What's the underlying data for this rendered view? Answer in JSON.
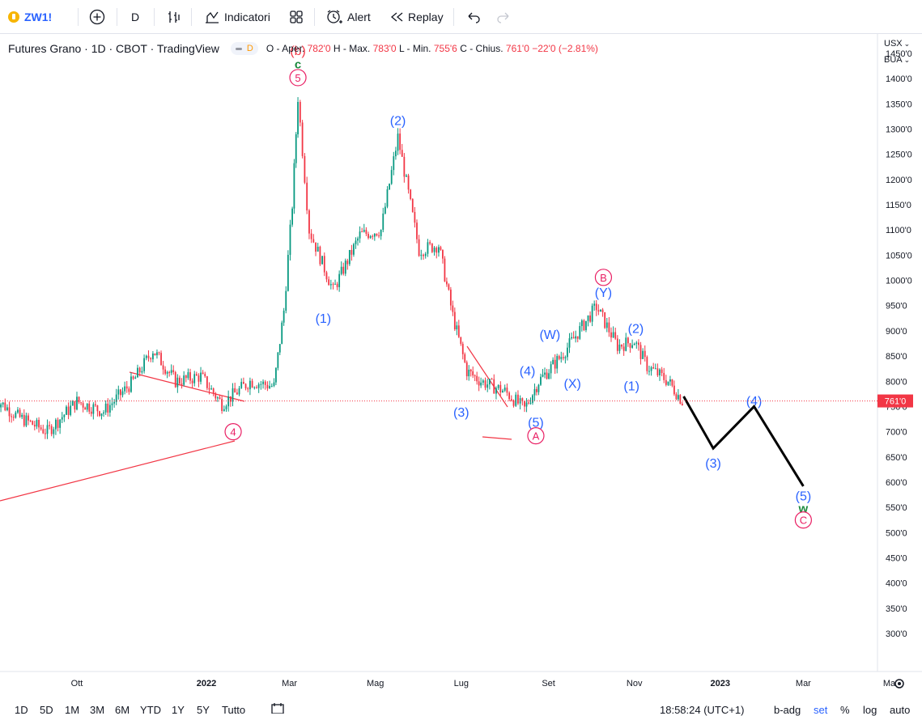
{
  "toolbar": {
    "symbol": "ZW1!",
    "interval": "D",
    "indicators_label": "Indicatori",
    "alert_label": "Alert",
    "replay_label": "Replay"
  },
  "legend": {
    "title": "Futures Grano · 1D · CBOT · TradingView",
    "pill_label": "D",
    "open_label": "O - Aper.",
    "open_value": "782'0",
    "high_label": "H - Max.",
    "high_value": "783'0",
    "low_label": "L - Min.",
    "low_value": "755'6",
    "close_label": "C - Chius.",
    "close_value": "761'0",
    "change_value": "−22'0 (−2.81%)"
  },
  "price_axis": {
    "currency": "USX",
    "unit": "BUA",
    "current_price_label": "761'0",
    "current_price": 761
  },
  "chart_data": {
    "type": "candlestick",
    "title": "Futures Grano · 1D · CBOT · TradingView",
    "y_ticks": [
      300,
      350,
      400,
      450,
      500,
      550,
      600,
      650,
      700,
      750,
      800,
      850,
      900,
      950,
      1000,
      1050,
      1100,
      1150,
      1200,
      1250,
      1300,
      1350,
      1400,
      1450
    ],
    "y_tick_labels": [
      "300'0",
      "350'0",
      "400'0",
      "450'0",
      "500'0",
      "550'0",
      "600'0",
      "650'0",
      "700'0",
      "750'0",
      "800'0",
      "850'0",
      "900'0",
      "950'0",
      "1000'0",
      "1050'0",
      "1100'0",
      "1150'0",
      "1200'0",
      "1250'0",
      "1300'0",
      "1350'0",
      "1400'0",
      "1450'0"
    ],
    "ylim": [
      290,
      1470
    ],
    "x_ticks": [
      "Ott",
      "2022",
      "Mar",
      "Mag",
      "Lug",
      "Set",
      "Nov",
      "2023",
      "Mar",
      "Ma"
    ],
    "x_tick_dates": [
      "2021-10-01",
      "2022-01-01",
      "2022-03-01",
      "2022-05-01",
      "2022-07-01",
      "2022-09-01",
      "2022-11-01",
      "2023-01-01",
      "2023-03-01",
      "2023-05-01"
    ],
    "price_path_approx": [
      [
        "2021-08-02",
        770
      ],
      [
        "2021-08-20",
        730
      ],
      [
        "2021-09-10",
        700
      ],
      [
        "2021-10-01",
        760
      ],
      [
        "2021-10-20",
        740
      ],
      [
        "2021-11-10",
        800
      ],
      [
        "2021-11-24",
        862
      ],
      [
        "2021-12-10",
        800
      ],
      [
        "2021-12-28",
        810
      ],
      [
        "2022-01-12",
        755
      ],
      [
        "2022-02-01",
        800
      ],
      [
        "2022-02-18",
        790
      ],
      [
        "2022-02-25",
        940
      ],
      [
        "2022-03-03",
        1150
      ],
      [
        "2022-03-07",
        1363
      ],
      [
        "2022-03-15",
        1100
      ],
      [
        "2022-04-01",
        980
      ],
      [
        "2022-04-20",
        1090
      ],
      [
        "2022-05-05",
        1100
      ],
      [
        "2022-05-17",
        1284
      ],
      [
        "2022-06-01",
        1060
      ],
      [
        "2022-06-15",
        1070
      ],
      [
        "2022-06-25",
        930
      ],
      [
        "2022-07-05",
        820
      ],
      [
        "2022-07-15",
        800
      ],
      [
        "2022-08-01",
        780
      ],
      [
        "2022-08-15",
        745
      ],
      [
        "2022-08-25",
        800
      ],
      [
        "2022-09-10",
        850
      ],
      [
        "2022-10-05",
        948
      ],
      [
        "2022-10-20",
        870
      ],
      [
        "2022-11-01",
        880
      ],
      [
        "2022-11-10",
        830
      ],
      [
        "2022-11-25",
        800
      ],
      [
        "2022-12-05",
        761
      ]
    ],
    "last_close": 761,
    "projection": [
      [
        "2022-12-06",
        770
      ],
      [
        "2022-12-27",
        667
      ],
      [
        "2023-01-25",
        750
      ],
      [
        "2023-03-01",
        592
      ]
    ],
    "wave_labels": [
      {
        "text": "(b)",
        "date": "2022-03-07",
        "price": 1455
      },
      {
        "text": "c",
        "date": "2022-03-07",
        "price": 1428
      },
      {
        "text": "5",
        "date": "2022-03-07",
        "price": 1402
      },
      {
        "text": "(2)",
        "date": "2022-05-17",
        "price": 1316
      },
      {
        "text": "(1)",
        "date": "2022-03-25",
        "price": 924
      },
      {
        "text": "4",
        "date": "2022-01-20",
        "price": 700
      },
      {
        "text": "(3)",
        "date": "2022-07-01",
        "price": 738
      },
      {
        "text": "(4)",
        "date": "2022-08-17",
        "price": 820
      },
      {
        "text": "(5)",
        "date": "2022-08-23",
        "price": 718
      },
      {
        "text": "A",
        "date": "2022-08-23",
        "price": 692
      },
      {
        "text": "(W)",
        "date": "2022-09-02",
        "price": 892
      },
      {
        "text": "(X)",
        "date": "2022-09-18",
        "price": 795
      },
      {
        "text": "B",
        "date": "2022-10-10",
        "price": 1006
      },
      {
        "text": "(Y)",
        "date": "2022-10-10",
        "price": 975
      },
      {
        "text": "(2)",
        "date": "2022-11-02",
        "price": 904
      },
      {
        "text": "(1)",
        "date": "2022-10-30",
        "price": 790
      },
      {
        "text": "(3)",
        "date": "2022-12-27",
        "price": 637
      },
      {
        "text": "(4)",
        "date": "2023-01-25",
        "price": 760
      },
      {
        "text": "(5)",
        "date": "2023-03-01",
        "price": 572
      },
      {
        "text": "w",
        "date": "2023-03-01",
        "price": 548
      },
      {
        "text": "C",
        "date": "2023-03-01",
        "price": 525
      }
    ]
  },
  "bottom_bar": {
    "ranges": [
      "1D",
      "5D",
      "1M",
      "3M",
      "6M",
      "YTD",
      "1Y",
      "5Y",
      "Tutto"
    ],
    "time": "18:58:24 (UTC+1)",
    "badj": "b-adg",
    "set": "set",
    "percent": "%",
    "log": "log",
    "auto": "auto"
  },
  "colors": {
    "up": "#089981",
    "down": "#f23645",
    "wave_blue": "#2962ff",
    "wave_pink": "#e91e63",
    "wave_green": "#1b8a3e",
    "trendline": "#f23645",
    "projection": "#000000"
  }
}
